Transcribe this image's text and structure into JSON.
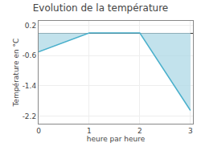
{
  "chart_data": {
    "type": "area",
    "title": "Evolution de la température",
    "xlabel": "heure par heure",
    "ylabel": "Température en °C",
    "x": [
      0,
      1,
      2,
      3
    ],
    "values": [
      -0.5,
      0.0,
      0.0,
      -2.05
    ],
    "color": "#4ab0cc",
    "xlim": [
      0,
      3.05
    ],
    "xticks": [
      0,
      1,
      2,
      3
    ],
    "ylim": [
      -2.4,
      0.32
    ],
    "yticks": [
      0.2,
      -0.6,
      -1.4,
      -2.2
    ],
    "grid": true
  }
}
